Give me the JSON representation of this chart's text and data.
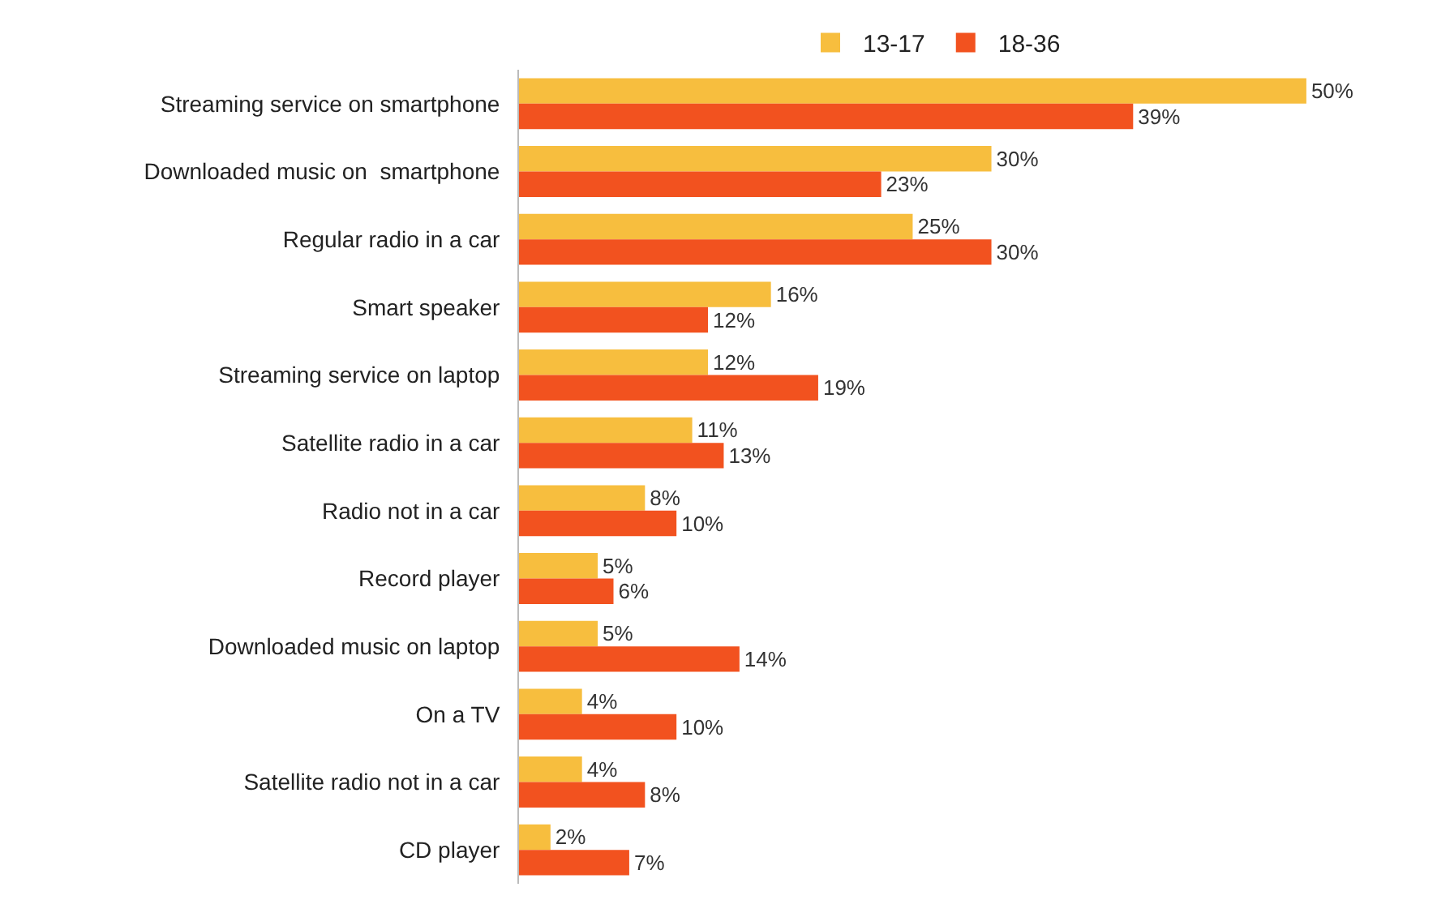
{
  "chart_data": {
    "type": "bar",
    "orientation": "horizontal",
    "categories": [
      "Streaming service on smartphone",
      "Downloaded music on  smartphone",
      "Regular radio in a car",
      "Smart speaker",
      "Streaming service on laptop",
      "Satellite radio in a car",
      "Radio not in a car",
      "Record player",
      "Downloaded music on laptop",
      "On a TV",
      "Satellite radio not in a car",
      "CD player"
    ],
    "series": [
      {
        "name": "13-17",
        "color": "#f7be3e",
        "values": [
          50,
          30,
          25,
          16,
          12,
          11,
          8,
          5,
          5,
          4,
          4,
          2
        ],
        "value_labels": [
          "50%",
          "30%",
          "25%",
          "16%",
          "12%",
          "11%",
          "8%",
          "5%",
          "5%",
          "4%",
          "4%",
          "2%"
        ]
      },
      {
        "name": "18-36",
        "color": "#f2521f",
        "values": [
          39,
          23,
          30,
          12,
          19,
          13,
          10,
          6,
          14,
          10,
          8,
          7
        ],
        "value_labels": [
          "39%",
          "23%",
          "30%",
          "12%",
          "19%",
          "13%",
          "10%",
          "6%",
          "14%",
          "10%",
          "8%",
          "7%"
        ]
      }
    ],
    "tick_labels": "y",
    "grid": false,
    "legend": "top"
  }
}
